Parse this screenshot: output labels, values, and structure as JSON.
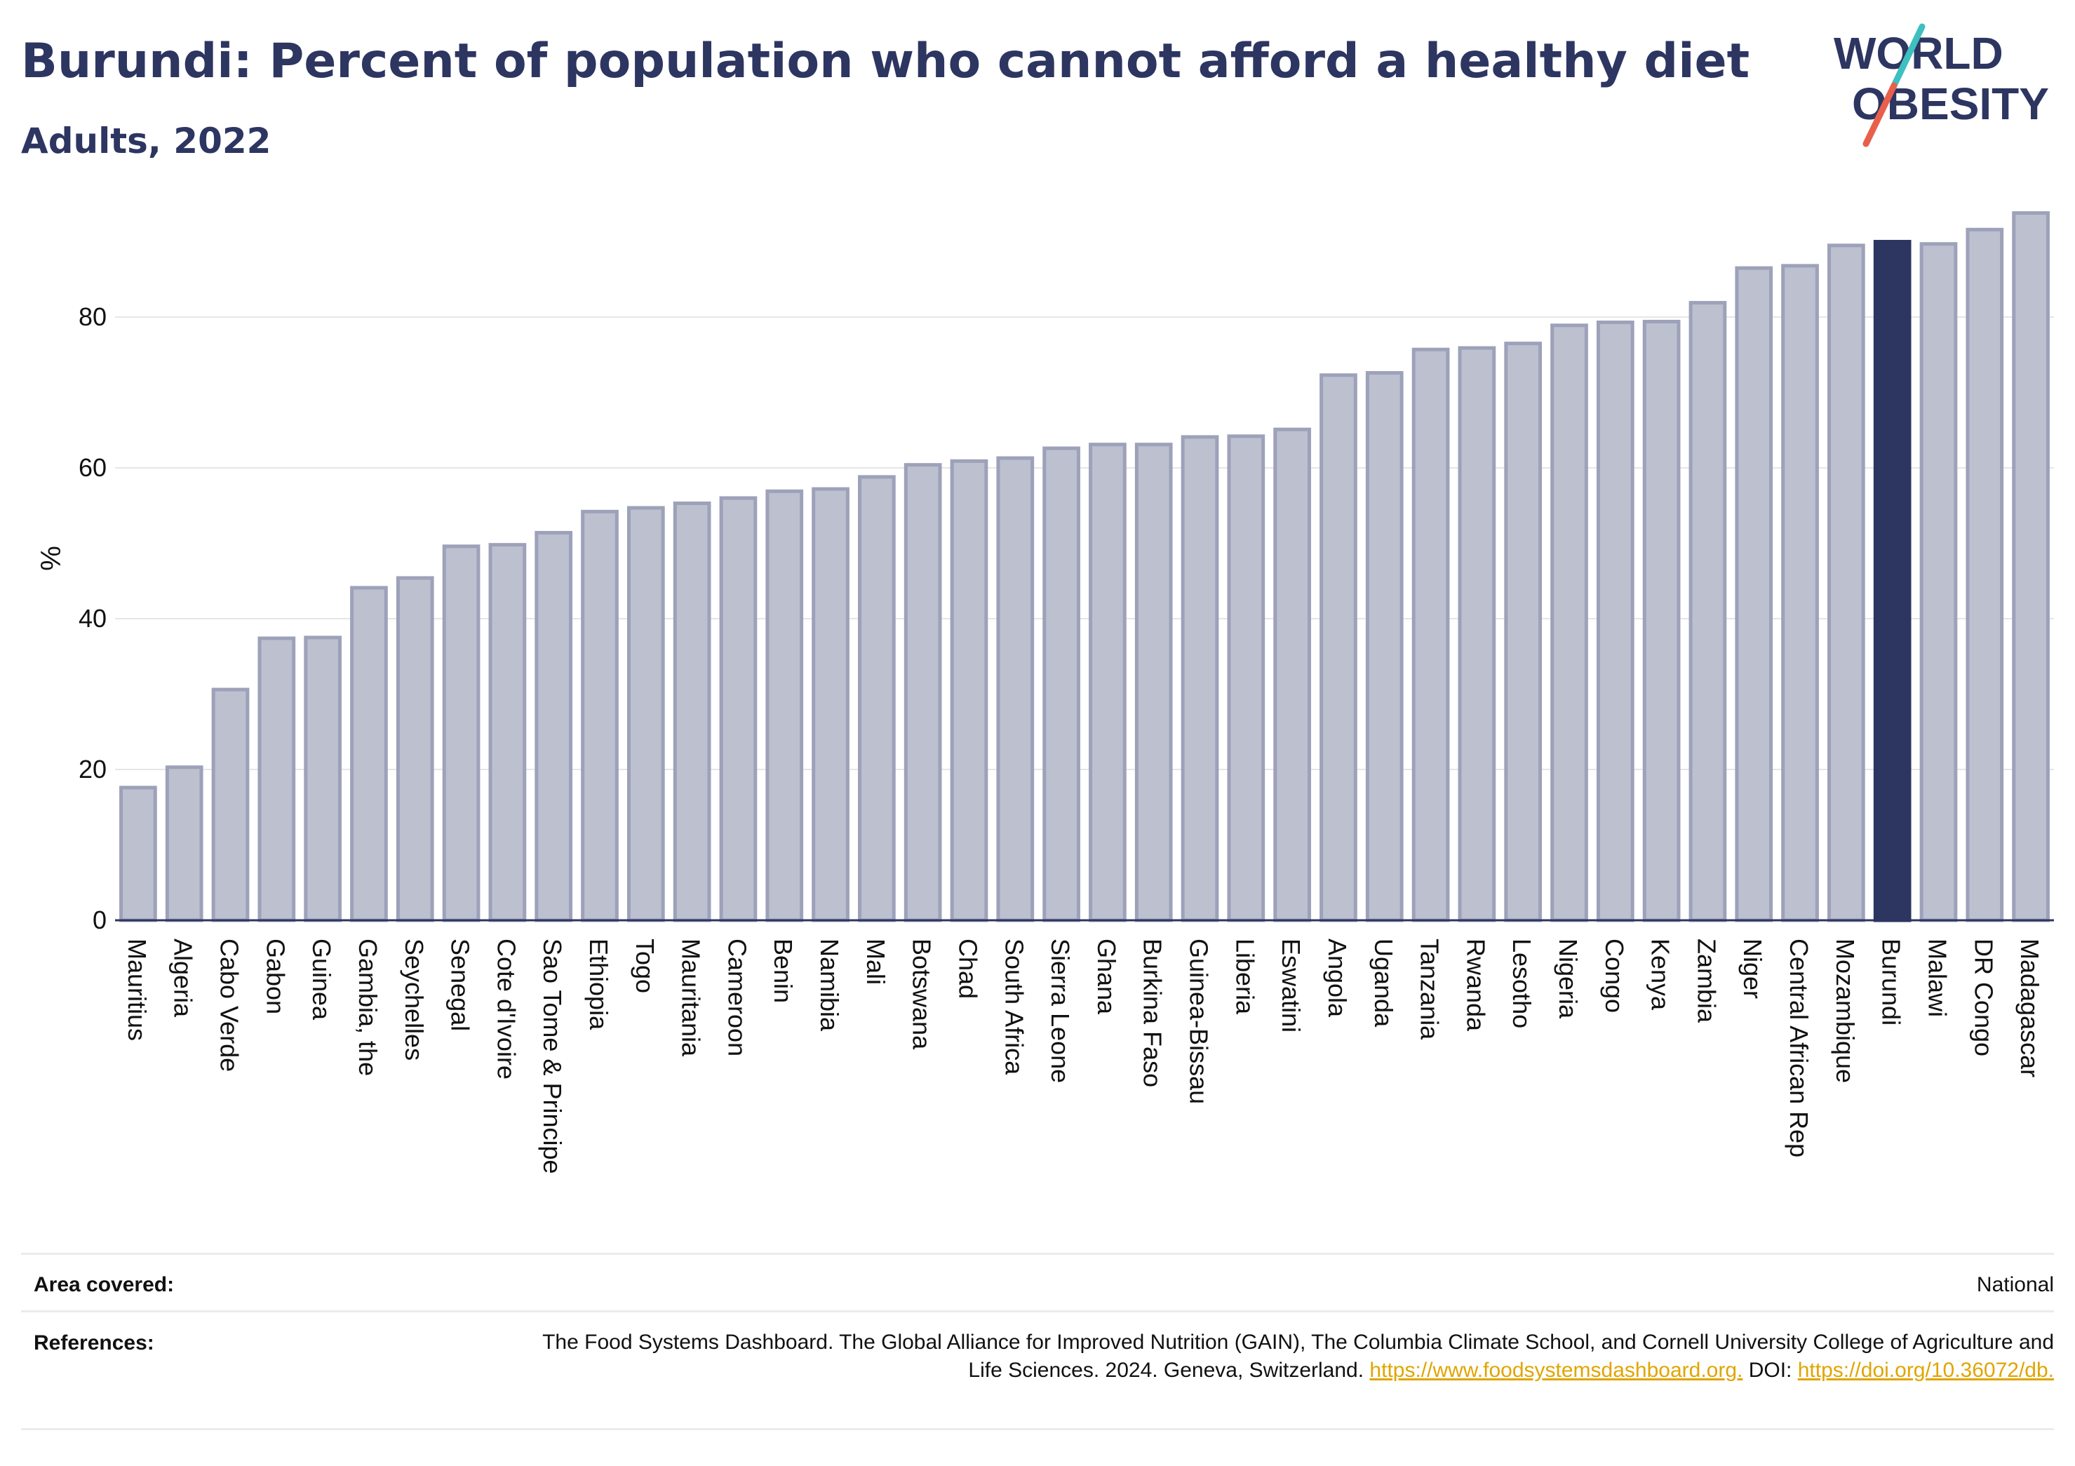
{
  "header": {
    "title": "Burundi: Percent of population who cannot afford a healthy diet",
    "subtitle": "Adults, 2022"
  },
  "logo": {
    "line1": "WORLD",
    "line2": "OBESITY",
    "colors": {
      "text": "#2d3561",
      "slash_top": "#3ebfc0",
      "slash_bottom": "#e8604c"
    }
  },
  "colors": {
    "bar_fill": "#bcc0cf",
    "bar_stroke": "#9da1b9",
    "highlight": "#2d3561",
    "grid": "#e6e6e6",
    "axis": "#2d3561"
  },
  "chart_data": {
    "type": "bar",
    "ylabel": "%",
    "ylim": [
      0,
      96
    ],
    "yticks": [
      0,
      20,
      40,
      60,
      80
    ],
    "highlight": "Burundi",
    "grid": true,
    "categories": [
      "Mauritius",
      "Algeria",
      "Cabo Verde",
      "Gabon",
      "Guinea",
      "Gambia, the",
      "Seychelles",
      "Senegal",
      "Cote d'Ivoire",
      "Sao Tome & Principe",
      "Ethiopia",
      "Togo",
      "Mauritania",
      "Cameroon",
      "Benin",
      "Namibia",
      "Mali",
      "Botswana",
      "Chad",
      "South Africa",
      "Sierra Leone",
      "Ghana",
      "Burkina Faso",
      "Guinea-Bissau",
      "Liberia",
      "Eswatini",
      "Angola",
      "Uganda",
      "Tanzania",
      "Rwanda",
      "Lesotho",
      "Nigeria",
      "Congo",
      "Kenya",
      "Zambia",
      "Niger",
      "Central African Rep",
      "Mozambique",
      "Burundi",
      "Malawi",
      "DR Congo",
      "Madagascar"
    ],
    "values": [
      17.6,
      20.3,
      30.6,
      37.4,
      37.5,
      44.1,
      45.4,
      49.6,
      49.8,
      51.4,
      54.2,
      54.7,
      55.3,
      56.0,
      56.9,
      57.2,
      58.8,
      60.4,
      60.9,
      61.3,
      62.6,
      63.1,
      63.1,
      64.1,
      64.2,
      65.1,
      72.3,
      72.6,
      75.7,
      75.9,
      76.5,
      78.9,
      79.3,
      79.4,
      81.9,
      86.5,
      86.8,
      89.5,
      90.0,
      89.7,
      91.6,
      93.8
    ]
  },
  "footer": {
    "area_label": "Area covered:",
    "area_value": "National",
    "references_label": "References:",
    "references_text": "The Food Systems Dashboard. The Global Alliance for Improved Nutrition (GAIN), The Columbia Climate School, and Cornell University College of Agriculture and Life Sciences. 2024. Geneva, Switzerland.",
    "references_link1": "https://www.foodsystemsdashboard.org.",
    "references_doi_label": "DOI:",
    "references_link2": "https://doi.org/10.36072/db."
  }
}
